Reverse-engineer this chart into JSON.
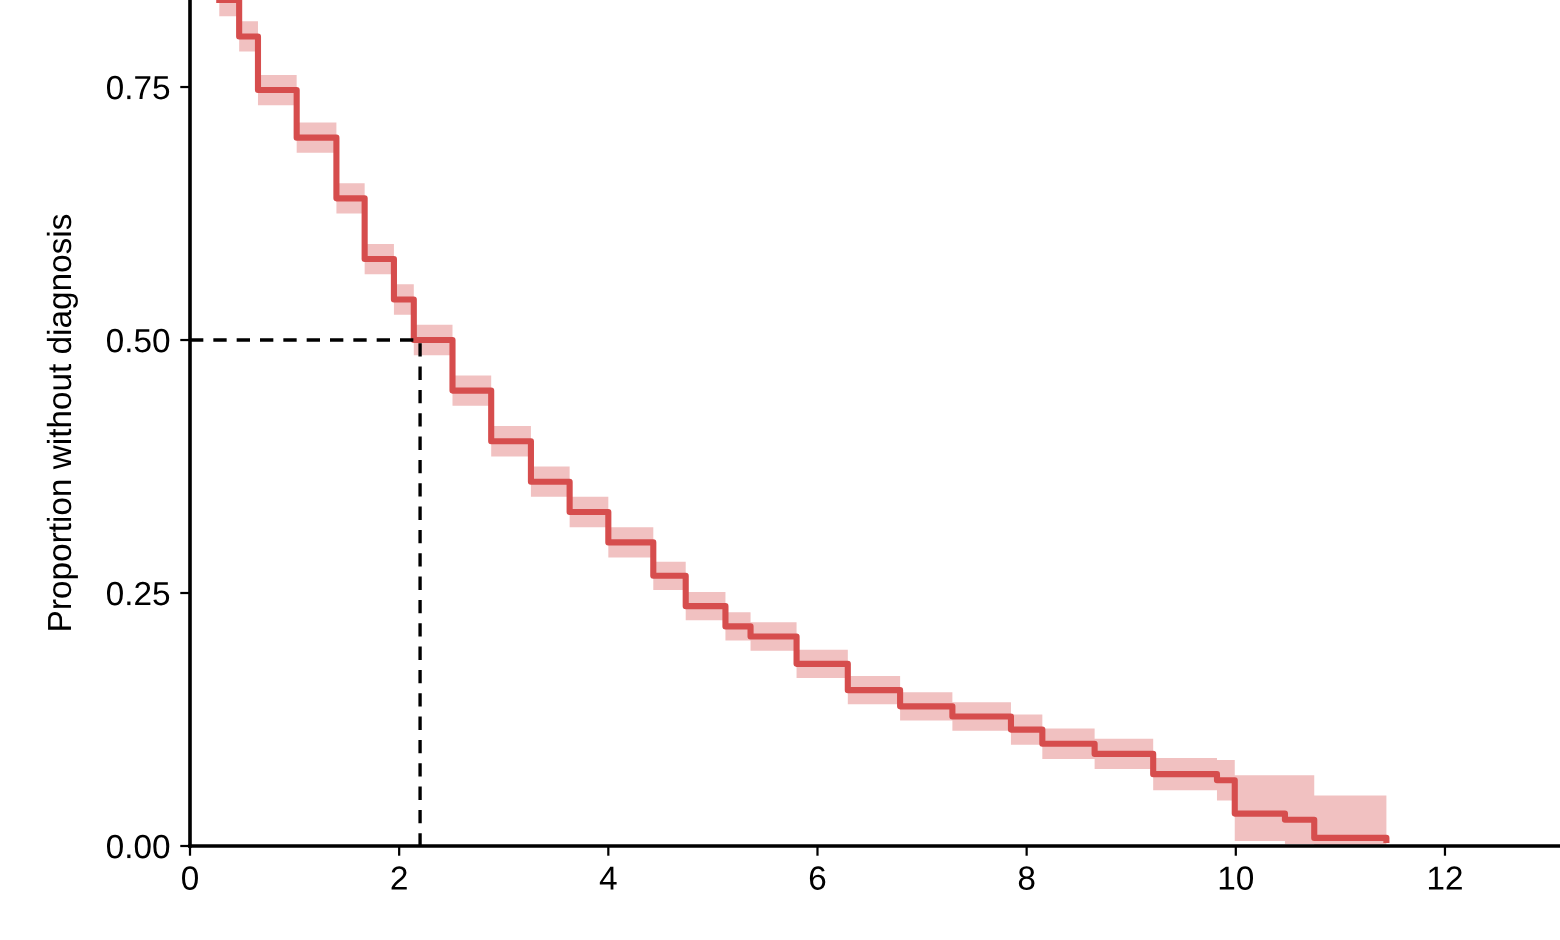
{
  "chart_data": {
    "type": "step",
    "ylabel": "Proportion without diagnosis",
    "xlim": [
      0,
      13.1
    ],
    "ylim": [
      0,
      0.836
    ],
    "xticks": [
      0,
      2,
      4,
      6,
      8,
      10,
      12
    ],
    "yticks": [
      {
        "value": 0,
        "label": "0.00"
      },
      {
        "value": 0.25,
        "label": "0.25"
      },
      {
        "value": 0.5,
        "label": "0.50"
      },
      {
        "value": 0.75,
        "label": "0.75"
      }
    ],
    "grid": false,
    "series": [
      {
        "color": "#d64d4d",
        "x": [
          0.28,
          0.47,
          0.65,
          1.02,
          1.4,
          1.67,
          1.95,
          2.14,
          2.51,
          2.88,
          3.26,
          3.63,
          4.0,
          4.43,
          4.74,
          5.12,
          5.36,
          5.8,
          6.29,
          6.79,
          7.29,
          7.85,
          8.15,
          8.65,
          9.21,
          9.82,
          9.99,
          10.47,
          10.75,
          11.44
        ],
        "values": [
          0.836,
          0.8,
          0.747,
          0.7,
          0.64,
          0.58,
          0.54,
          0.5,
          0.45,
          0.4,
          0.36,
          0.33,
          0.3,
          0.267,
          0.237,
          0.217,
          0.207,
          0.18,
          0.154,
          0.138,
          0.128,
          0.115,
          0.101,
          0.091,
          0.071,
          0.065,
          0.032,
          0.026,
          0.008,
          0.006
        ],
        "lower": [
          0.82,
          0.785,
          0.732,
          0.685,
          0.625,
          0.565,
          0.525,
          0.485,
          0.435,
          0.385,
          0.345,
          0.315,
          0.285,
          0.253,
          0.223,
          0.203,
          0.193,
          0.166,
          0.14,
          0.124,
          0.114,
          0.1,
          0.086,
          0.076,
          0.055,
          0.045,
          0.005,
          0.002,
          0.0,
          0.0
        ],
        "upper": [
          0.836,
          0.815,
          0.762,
          0.715,
          0.655,
          0.595,
          0.555,
          0.515,
          0.465,
          0.415,
          0.375,
          0.345,
          0.315,
          0.281,
          0.251,
          0.231,
          0.221,
          0.194,
          0.168,
          0.152,
          0.142,
          0.13,
          0.116,
          0.106,
          0.087,
          0.085,
          0.07,
          0.07,
          0.05,
          0.05
        ]
      },
      {
        "type": "line",
        "color": "#000000",
        "line_style": "dashed",
        "x": [
          0,
          2.2,
          2.2
        ],
        "values": [
          0.5,
          0.5,
          0
        ]
      }
    ]
  }
}
